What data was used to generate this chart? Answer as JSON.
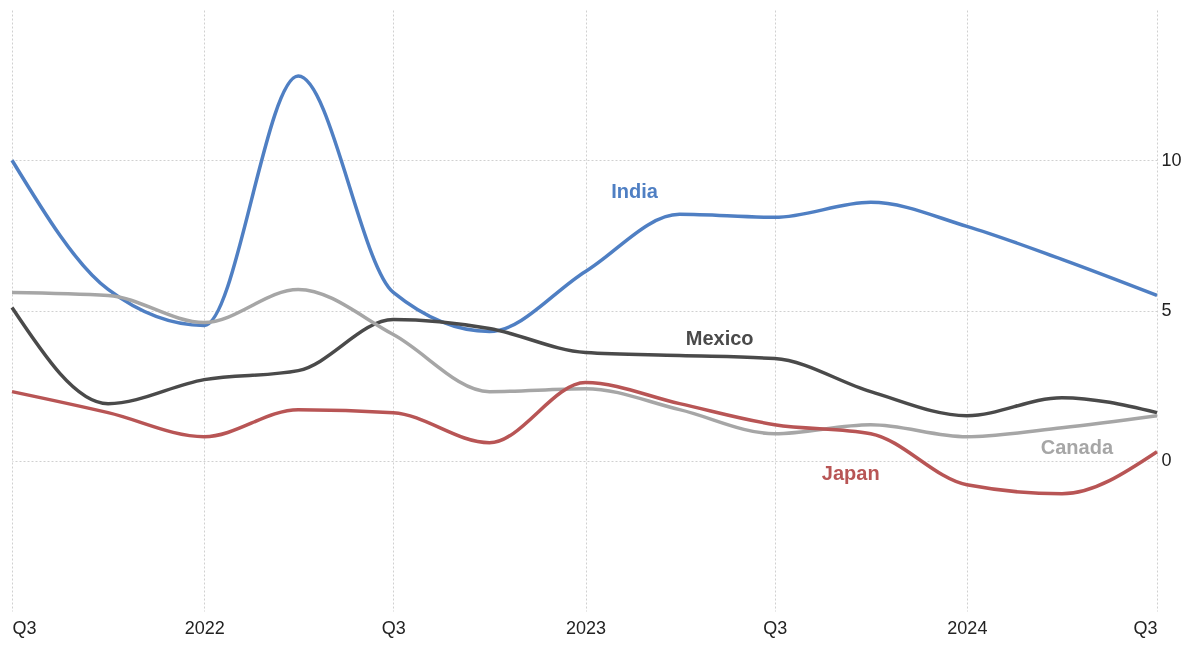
{
  "chart_data": {
    "type": "line",
    "x": [
      "2021-07",
      "2021-10",
      "2022-01",
      "2022-04",
      "2022-07",
      "2022-10",
      "2023-01",
      "2023-04",
      "2023-07",
      "2023-10",
      "2024-01",
      "2024-04",
      "2024-07"
    ],
    "series": [
      {
        "name": "India",
        "color": "#4f7fc3",
        "values": [
          10,
          5.7,
          4.5,
          12.8,
          5.6,
          4.3,
          6.3,
          8.2,
          8.1,
          8.6,
          7.8,
          6.7,
          5.5
        ]
      },
      {
        "name": "Mexico",
        "color": "#4a4a4a",
        "values": [
          5.1,
          1.9,
          2.7,
          3.0,
          4.7,
          4.4,
          3.6,
          3.5,
          3.4,
          2.3,
          1.5,
          2.1,
          1.6
        ]
      },
      {
        "name": "Canada",
        "color": "#a6a6a6",
        "values": [
          5.6,
          5.5,
          4.6,
          5.7,
          4.2,
          2.3,
          2.4,
          1.7,
          0.9,
          1.2,
          0.8,
          1.1,
          1.5
        ]
      },
      {
        "name": "Japan",
        "color": "#b85555",
        "values": [
          2.3,
          1.6,
          0.8,
          1.7,
          1.6,
          0.6,
          2.6,
          1.9,
          1.2,
          0.9,
          -0.8,
          -1.1,
          0.3
        ]
      }
    ],
    "xlim": [
      "2021-07",
      "2024-07"
    ],
    "xticks": [
      {
        "value": "2021-07",
        "label": "Q3"
      },
      {
        "value": "2022-01",
        "label": "2022"
      },
      {
        "value": "2022-07",
        "label": "Q3"
      },
      {
        "value": "2023-01",
        "label": "2023"
      },
      {
        "value": "2023-07",
        "label": "Q3"
      },
      {
        "value": "2024-01",
        "label": "2024"
      },
      {
        "value": "2024-07",
        "label": "Q3"
      }
    ],
    "ylim": [
      -5,
      15
    ],
    "yticks": [
      0,
      5,
      10
    ],
    "grid": true,
    "line_style": "solid",
    "marker": "none",
    "legend": false
  }
}
